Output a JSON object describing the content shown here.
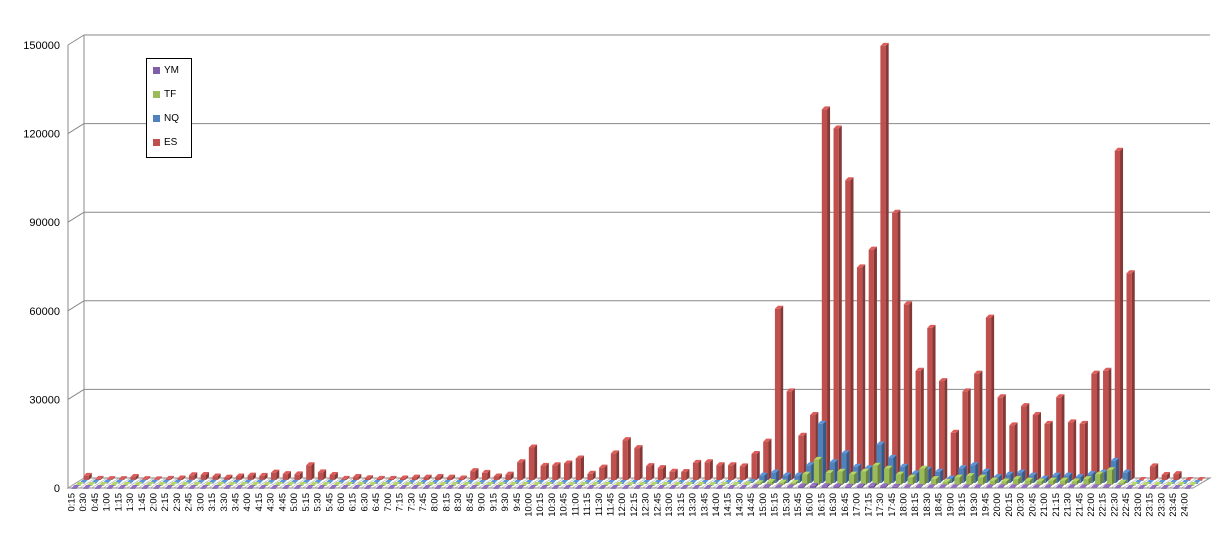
{
  "chart_data": {
    "type": "bar",
    "title": "",
    "xlabel": "",
    "ylabel": "",
    "ylim": [
      0,
      150000
    ],
    "yticks": [
      "0",
      "30000",
      "60000",
      "90000",
      "120000",
      "150000"
    ],
    "grid": true,
    "legend_position": "top-left",
    "categories": [
      "0:15",
      "0:30",
      "0:45",
      "1:00",
      "1:15",
      "1:30",
      "1:45",
      "2:00",
      "2:15",
      "2:30",
      "2:45",
      "3:00",
      "3:15",
      "3:30",
      "3:45",
      "4:00",
      "4:15",
      "4:30",
      "4:45",
      "5:00",
      "5:15",
      "5:30",
      "5:45",
      "6:00",
      "6:15",
      "6:30",
      "6:45",
      "7:00",
      "7:15",
      "7:30",
      "7:45",
      "8:00",
      "8:15",
      "8:30",
      "8:45",
      "9:00",
      "9:15",
      "9:30",
      "9:45",
      "10:00",
      "10:15",
      "10:30",
      "10:45",
      "11:00",
      "11:15",
      "11:30",
      "11:45",
      "12:00",
      "12:15",
      "12:30",
      "12:45",
      "13:00",
      "13:15",
      "13:30",
      "13:45",
      "14:00",
      "14:15",
      "14:30",
      "14:45",
      "15:00",
      "15:15",
      "15:30",
      "15:45",
      "16:00",
      "16:15",
      "16:30",
      "16:45",
      "17:00",
      "17:15",
      "17:30",
      "17:45",
      "18:00",
      "18:15",
      "18:30",
      "18:45",
      "19:00",
      "19:15",
      "19:30",
      "19:45",
      "20:00",
      "20:15",
      "20:30",
      "20:45",
      "21:00",
      "21:15",
      "21:30",
      "21:45",
      "22:00",
      "22:15",
      "22:30",
      "22:45",
      "23:00",
      "23:15",
      "23:30",
      "23:45",
      "24:00"
    ],
    "series": [
      {
        "name": "YM",
        "color": "#7f5fa8",
        "values": [
          0,
          0,
          0,
          0,
          0,
          0,
          0,
          0,
          0,
          0,
          0,
          0,
          0,
          0,
          0,
          0,
          0,
          0,
          0,
          0,
          0,
          0,
          0,
          0,
          0,
          0,
          0,
          0,
          0,
          0,
          0,
          0,
          0,
          0,
          0,
          0,
          0,
          0,
          0,
          0,
          0,
          0,
          0,
          0,
          0,
          0,
          0,
          0,
          0,
          0,
          0,
          0,
          0,
          0,
          0,
          0,
          0,
          0,
          200,
          300,
          200,
          200,
          500,
          700,
          600,
          500,
          400,
          500,
          700,
          500,
          400,
          200,
          300,
          200,
          200,
          200,
          200,
          200,
          200,
          200,
          200,
          200,
          200,
          200,
          200,
          200,
          200,
          200,
          300,
          100,
          0,
          0,
          0,
          0,
          0,
          0
        ]
      },
      {
        "name": "TF",
        "color": "#9bbb59",
        "values": [
          0,
          0,
          0,
          0,
          0,
          0,
          0,
          0,
          0,
          0,
          0,
          0,
          0,
          0,
          0,
          0,
          0,
          0,
          0,
          0,
          0,
          0,
          0,
          0,
          0,
          0,
          0,
          0,
          0,
          0,
          0,
          0,
          0,
          0,
          0,
          0,
          0,
          0,
          0,
          0,
          0,
          0,
          0,
          0,
          0,
          0,
          0,
          0,
          0,
          0,
          0,
          0,
          0,
          0,
          0,
          0,
          0,
          200,
          600,
          1000,
          800,
          700,
          3500,
          8500,
          4000,
          4500,
          3500,
          4500,
          6500,
          5500,
          3500,
          2500,
          5500,
          2000,
          1000,
          2500,
          3000,
          2500,
          1500,
          1200,
          2000,
          1500,
          1200,
          1500,
          1500,
          1200,
          2000,
          3500,
          5000,
          800,
          0,
          0,
          0,
          0,
          0,
          0
        ]
      },
      {
        "name": "NQ",
        "color": "#4f81bd",
        "values": [
          100,
          100,
          100,
          100,
          100,
          100,
          100,
          100,
          100,
          100,
          100,
          100,
          100,
          100,
          100,
          100,
          100,
          100,
          100,
          100,
          100,
          100,
          100,
          0,
          0,
          0,
          0,
          0,
          0,
          0,
          0,
          0,
          0,
          0,
          0,
          0,
          0,
          0,
          0,
          0,
          0,
          0,
          0,
          0,
          0,
          0,
          0,
          0,
          0,
          0,
          0,
          0,
          0,
          0,
          0,
          0,
          0,
          400,
          2500,
          3500,
          2500,
          2500,
          6000,
          20000,
          7000,
          10000,
          5500,
          5000,
          13000,
          8500,
          5500,
          3200,
          4500,
          3800,
          1500,
          5000,
          6000,
          3800,
          2000,
          2800,
          3500,
          2500,
          1500,
          2500,
          2500,
          2000,
          3000,
          3500,
          7500,
          3500,
          0,
          0,
          0,
          0,
          0,
          0
        ]
      },
      {
        "name": "ES",
        "color": "#c0504d",
        "values": [
          1400,
          400,
          300,
          300,
          1000,
          300,
          200,
          400,
          500,
          1600,
          1700,
          1200,
          800,
          1200,
          1500,
          1400,
          2500,
          2000,
          1900,
          5000,
          2600,
          1700,
          400,
          1000,
          600,
          400,
          400,
          500,
          800,
          800,
          1000,
          800,
          500,
          3000,
          2400,
          1200,
          1800,
          6000,
          11000,
          4800,
          5000,
          5600,
          7300,
          2100,
          4200,
          9000,
          13500,
          10800,
          4700,
          4000,
          2800,
          2700,
          5800,
          6000,
          5000,
          5000,
          4600,
          8800,
          13000,
          58000,
          30000,
          15000,
          22000,
          125500,
          119000,
          101500,
          72000,
          78000,
          147000,
          90500,
          59500,
          37000,
          51500,
          33500,
          16000,
          30000,
          36000,
          55000,
          28000,
          18500,
          25000,
          22000,
          19000,
          28000,
          19500,
          19000,
          36000,
          37000,
          111500,
          70000,
          0,
          4600,
          1700,
          2000,
          0,
          0
        ]
      }
    ]
  },
  "legend": {
    "ym": "YM",
    "tf": "TF",
    "nq": "NQ",
    "es": "ES"
  }
}
